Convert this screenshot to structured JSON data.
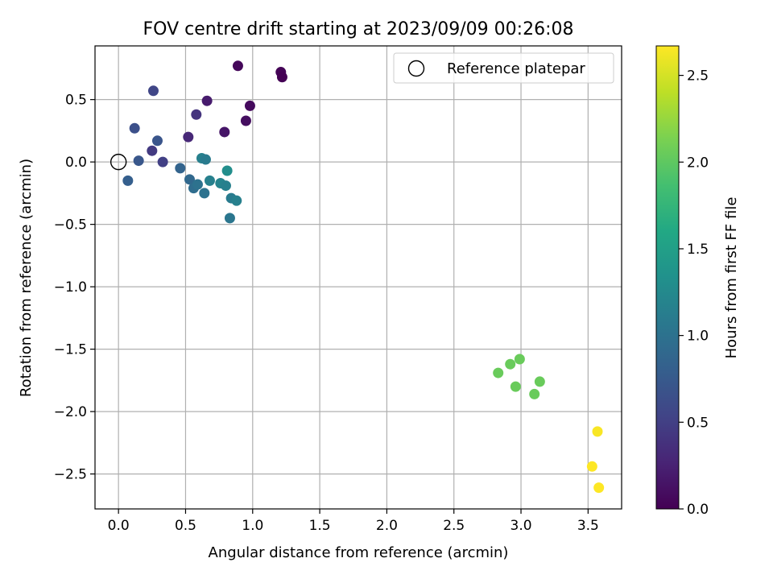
{
  "chart_data": {
    "type": "scatter",
    "title": "FOV centre drift starting at 2023/09/09 00:26:08",
    "xlabel": "Angular distance from reference (arcmin)",
    "ylabel": "Rotation from reference (arcmin)",
    "xlim": [
      -0.175,
      3.75
    ],
    "ylim": [
      -2.78,
      0.93
    ],
    "xticks": [
      0.0,
      0.5,
      1.0,
      1.5,
      2.0,
      2.5,
      3.0,
      3.5
    ],
    "xtick_labels": [
      "0.0",
      "0.5",
      "1.0",
      "1.5",
      "2.0",
      "2.5",
      "3.0",
      "3.5"
    ],
    "yticks": [
      0.5,
      0.0,
      -0.5,
      -1.0,
      -1.5,
      -2.0,
      -2.5
    ],
    "ytick_labels": [
      "0.5",
      "0.0",
      "−0.5",
      "−1.0",
      "−1.5",
      "−2.0",
      "−2.5"
    ],
    "grid": true,
    "legend": {
      "placement": "top-right",
      "entries": [
        {
          "label": "Reference platepar",
          "marker": "open-circle",
          "x": 0.0,
          "y": 0.0
        }
      ]
    },
    "colorbar": {
      "label": "Hours from first FF file",
      "range": [
        0.0,
        2.67
      ],
      "ticks": [
        0.0,
        0.5,
        1.0,
        1.5,
        2.0,
        2.5
      ],
      "tick_labels": [
        "0.0",
        "0.5",
        "1.0",
        "1.5",
        "2.0",
        "2.5"
      ],
      "colormap": "viridis"
    },
    "points": [
      {
        "x": 0.89,
        "y": 0.77,
        "c": 0.05
      },
      {
        "x": 1.21,
        "y": 0.72,
        "c": 0.02
      },
      {
        "x": 1.22,
        "y": 0.68,
        "c": 0.0
      },
      {
        "x": 0.98,
        "y": 0.45,
        "c": 0.07
      },
      {
        "x": 0.95,
        "y": 0.33,
        "c": 0.1
      },
      {
        "x": 0.79,
        "y": 0.24,
        "c": 0.15
      },
      {
        "x": 0.66,
        "y": 0.49,
        "c": 0.2
      },
      {
        "x": 0.52,
        "y": 0.2,
        "c": 0.3
      },
      {
        "x": 0.58,
        "y": 0.38,
        "c": 0.4
      },
      {
        "x": 0.26,
        "y": 0.57,
        "c": 0.55
      },
      {
        "x": 0.25,
        "y": 0.09,
        "c": 0.45
      },
      {
        "x": 0.33,
        "y": 0.0,
        "c": 0.5
      },
      {
        "x": 0.12,
        "y": 0.27,
        "c": 0.65
      },
      {
        "x": 0.29,
        "y": 0.17,
        "c": 0.7
      },
      {
        "x": 0.15,
        "y": 0.01,
        "c": 0.72
      },
      {
        "x": 0.07,
        "y": -0.15,
        "c": 0.8
      },
      {
        "x": 0.46,
        "y": -0.05,
        "c": 0.85
      },
      {
        "x": 0.53,
        "y": -0.14,
        "c": 0.9
      },
      {
        "x": 0.56,
        "y": -0.21,
        "c": 0.95
      },
      {
        "x": 0.59,
        "y": -0.18,
        "c": 1.0
      },
      {
        "x": 0.64,
        "y": -0.25,
        "c": 1.0
      },
      {
        "x": 0.62,
        "y": 0.03,
        "c": 1.15
      },
      {
        "x": 0.65,
        "y": 0.02,
        "c": 1.1
      },
      {
        "x": 0.68,
        "y": -0.15,
        "c": 1.15
      },
      {
        "x": 0.76,
        "y": -0.17,
        "c": 1.2
      },
      {
        "x": 0.8,
        "y": -0.19,
        "c": 1.15
      },
      {
        "x": 0.81,
        "y": -0.07,
        "c": 1.3
      },
      {
        "x": 0.84,
        "y": -0.29,
        "c": 1.1
      },
      {
        "x": 0.88,
        "y": -0.31,
        "c": 1.15
      },
      {
        "x": 0.83,
        "y": -0.45,
        "c": 1.05
      },
      {
        "x": 2.83,
        "y": -1.69,
        "c": 2.05
      },
      {
        "x": 2.92,
        "y": -1.62,
        "c": 2.05
      },
      {
        "x": 2.99,
        "y": -1.58,
        "c": 2.05
      },
      {
        "x": 2.96,
        "y": -1.8,
        "c": 2.05
      },
      {
        "x": 3.14,
        "y": -1.76,
        "c": 2.05
      },
      {
        "x": 3.1,
        "y": -1.86,
        "c": 2.05
      },
      {
        "x": 3.57,
        "y": -2.16,
        "c": 2.65
      },
      {
        "x": 3.53,
        "y": -2.44,
        "c": 2.67
      },
      {
        "x": 3.58,
        "y": -2.61,
        "c": 2.67
      }
    ]
  }
}
